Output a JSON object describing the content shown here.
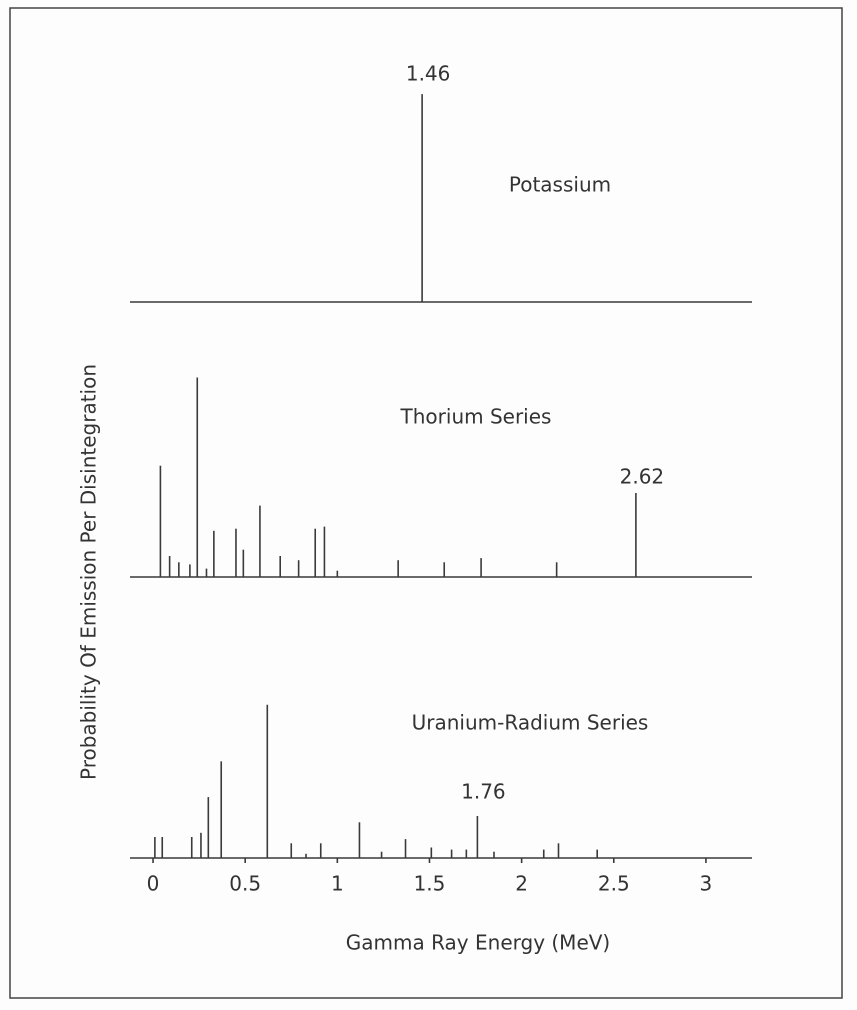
{
  "chart_data": {
    "type": "stem",
    "xlabel": "Gamma Ray Energy (MeV)",
    "ylabel": "Probability Of Emission Per Disintegration",
    "xlim": [
      -0.125,
      3.25
    ],
    "xticks": [
      0,
      0.5,
      1,
      1.5,
      2,
      2.5,
      3
    ],
    "ylim": [
      0,
      100
    ],
    "color": "#3a3a3a",
    "panels": [
      {
        "name": "Potassium",
        "x": [
          1.46
        ],
        "values": [
          99
        ]
      },
      {
        "name": "Thorium Series",
        "x": [
          0.04,
          0.09,
          0.14,
          0.2,
          0.24,
          0.29,
          0.33,
          0.45,
          0.49,
          0.58,
          0.69,
          0.79,
          0.88,
          0.93,
          1.0,
          1.33,
          1.58,
          1.78,
          2.19,
          2.62
        ],
        "values": [
          53,
          10,
          7,
          6,
          95,
          4,
          22,
          23,
          13,
          34,
          10,
          8,
          23,
          24,
          3,
          8,
          7,
          9,
          7,
          40
        ]
      },
      {
        "name": "Uranium-Radium Series",
        "x": [
          0.01,
          0.05,
          0.21,
          0.26,
          0.3,
          0.37,
          0.62,
          0.75,
          0.83,
          0.91,
          1.12,
          1.24,
          1.37,
          1.51,
          1.62,
          1.7,
          1.76,
          1.85,
          2.12,
          2.2,
          2.41
        ],
        "values": [
          10,
          10,
          10,
          12,
          29,
          46,
          73,
          7,
          2,
          7,
          17,
          3,
          9,
          5,
          4,
          4,
          20,
          3,
          4,
          7,
          4
        ]
      }
    ]
  }
}
